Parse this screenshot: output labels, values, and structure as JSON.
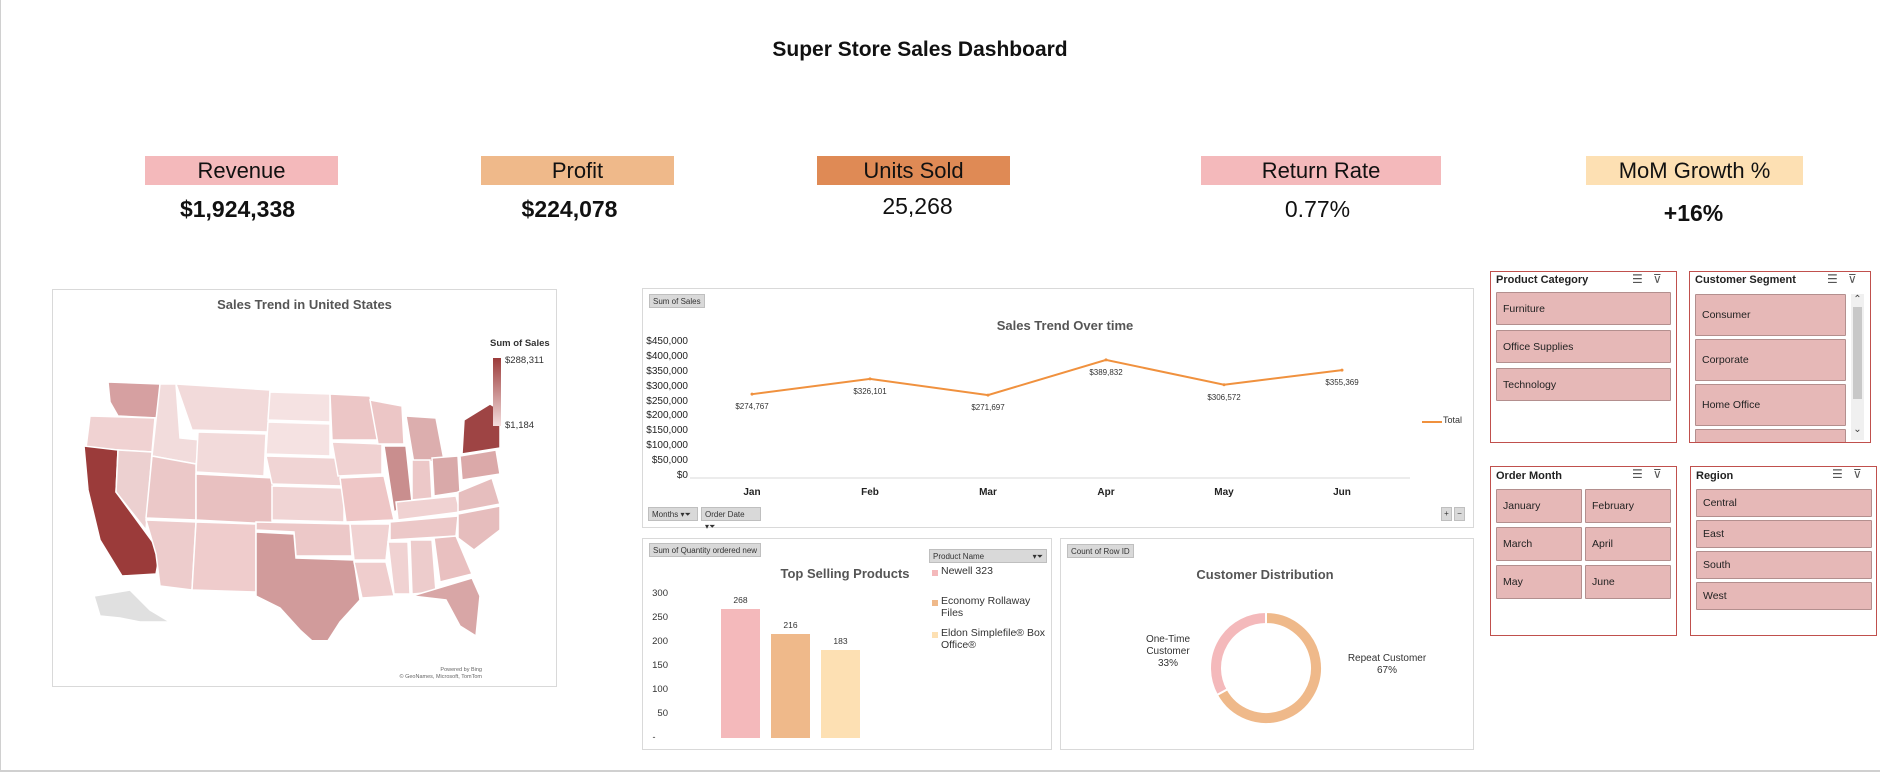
{
  "dashboard_title": "Super Store Sales Dashboard",
  "kpis": [
    {
      "label": "Revenue",
      "value": "$1,924,338",
      "color": "#f4b9bb"
    },
    {
      "label": "Profit",
      "value": "$224,078",
      "color": "#efb98a"
    },
    {
      "label": "Units Sold",
      "value": "25,268",
      "color": "#df8a55"
    },
    {
      "label": "Return Rate",
      "value": "0.77%",
      "color": "#f4b9bb"
    },
    {
      "label": "MoM Growth %",
      "value": "+16%",
      "color": "#fde0b3"
    }
  ],
  "map": {
    "title": "Sales Trend in United States",
    "legend_title": "Sum of Sales",
    "legend_max": "$288,311",
    "legend_min": "$1,184",
    "credit_line1": "Powered by Bing",
    "credit_line2": "© GeoNames, Microsoft, TomTom"
  },
  "sales_trend": {
    "field_button": "Sum of Sales",
    "filter_months": "Months",
    "filter_order_date": "Order Date",
    "legend_label": "Total",
    "plus": "+",
    "minus": "−",
    "line_color": "#f0913e"
  },
  "top_products": {
    "field_button": "Sum of Quantity ordered new",
    "legend_field_button": "Product Name",
    "ytick_min_label": "-"
  },
  "customer_dist": {
    "field_button": "Count of Row ID"
  },
  "chart_data": [
    {
      "type": "line",
      "title": "Sales Trend Over time",
      "categories": [
        "Jan",
        "Feb",
        "Mar",
        "Apr",
        "May",
        "Jun"
      ],
      "series": [
        {
          "name": "Total",
          "values": [
            274767,
            326101,
            271697,
            389832,
            306572,
            355369
          ]
        }
      ],
      "data_labels": [
        "$274,767",
        "$326,101",
        "$271,697",
        "$389,832",
        "$306,572",
        "$355,369"
      ],
      "yticks": [
        "$450,000",
        "$400,000",
        "$350,000",
        "$300,000",
        "$250,000",
        "$200,000",
        "$150,000",
        "$100,000",
        "$50,000",
        "$0"
      ],
      "ylim": [
        0,
        450000
      ]
    },
    {
      "type": "bar",
      "title": "Top Selling Products",
      "categories": [
        "Newell 323",
        "Economy Rollaway Files",
        "Eldon Simplefile® Box Office®"
      ],
      "values": [
        268,
        216,
        183
      ],
      "colors": [
        "#f4b9bb",
        "#efb98a",
        "#fde0b3"
      ],
      "yticks": [
        "300",
        "250",
        "200",
        "150",
        "100",
        "50"
      ],
      "ylim": [
        0,
        300
      ]
    },
    {
      "type": "pie",
      "title": "Customer Distribution",
      "labels": [
        "Repeat Customer",
        "One-Time Customer"
      ],
      "values": [
        67,
        33
      ],
      "label_texts": [
        "67%",
        "33%"
      ],
      "colors": [
        "#efb98a",
        "#f4b9bb"
      ]
    }
  ],
  "slicers": {
    "category": {
      "title": "Product Category",
      "items": [
        "Furniture",
        "Office Supplies",
        "Technology"
      ]
    },
    "segment": {
      "title": "Customer Segment",
      "items": [
        "Consumer",
        "Corporate",
        "Home Office"
      ]
    },
    "month": {
      "title": "Order Month",
      "items": [
        "January",
        "February",
        "March",
        "April",
        "May",
        "June"
      ]
    },
    "region": {
      "title": "Region",
      "items": [
        "Central",
        "East",
        "South",
        "West"
      ]
    }
  }
}
